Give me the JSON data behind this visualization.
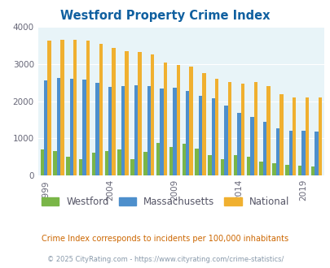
{
  "title": "Westford Property Crime Index",
  "title_color": "#1060a0",
  "bg_color": "#e8f4f8",
  "years": [
    1999,
    2000,
    2001,
    2002,
    2003,
    2004,
    2005,
    2006,
    2007,
    2008,
    2009,
    2010,
    2011,
    2012,
    2013,
    2014,
    2015,
    2016,
    2017,
    2018,
    2019,
    2020
  ],
  "westford": [
    700,
    660,
    500,
    430,
    610,
    650,
    700,
    450,
    630,
    880,
    760,
    860,
    730,
    540,
    450,
    540,
    510,
    370,
    330,
    290,
    260,
    250
  ],
  "massachusetts": [
    2560,
    2630,
    2600,
    2580,
    2500,
    2390,
    2400,
    2420,
    2400,
    2330,
    2360,
    2280,
    2150,
    2070,
    1880,
    1690,
    1570,
    1450,
    1270,
    1200,
    1200,
    1190
  ],
  "national": [
    3620,
    3650,
    3650,
    3620,
    3540,
    3440,
    3350,
    3320,
    3250,
    3040,
    2970,
    2920,
    2760,
    2600,
    2520,
    2480,
    2510,
    2400,
    2190,
    2100,
    2100,
    2090
  ],
  "westford_color": "#7ab648",
  "mass_color": "#4d8fcc",
  "national_color": "#f0b030",
  "ylim": [
    0,
    4000
  ],
  "yticks": [
    0,
    1000,
    2000,
    3000,
    4000
  ],
  "footnote": "Crime Index corresponds to incidents per 100,000 inhabitants",
  "footnote2": "© 2025 CityRating.com - https://www.cityrating.com/crime-statistics/",
  "footnote_color": "#cc6600",
  "footnote2_color": "#8899aa",
  "legend_labels": [
    "Westford",
    "Massachusetts",
    "National"
  ],
  "xtick_years": [
    1999,
    2004,
    2009,
    2014,
    2019
  ]
}
